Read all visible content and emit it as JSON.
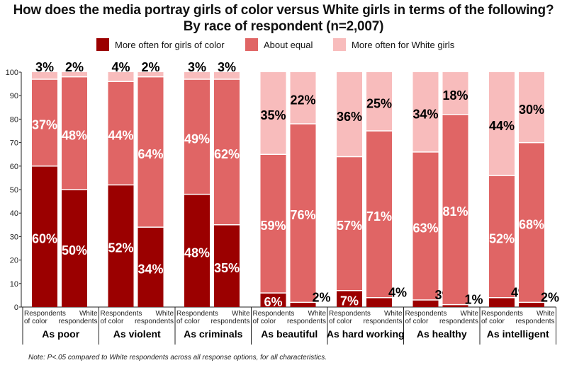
{
  "title_line1": "How does the media portray girls of color versus White girls in terms of the following?",
  "title_line2": "By race of respondent (n=2,007)",
  "legend": [
    {
      "label": "More often for girls of color",
      "color": "#9b0000"
    },
    {
      "label": "About equal",
      "color": "#e06565"
    },
    {
      "label": "More often for White girls",
      "color": "#f8bcbc"
    }
  ],
  "note": "Note: P<.05 compared to White respondents across all response options, for all characteristics.",
  "chart_data": {
    "type": "bar",
    "stacked": true,
    "ylim": [
      0,
      100
    ],
    "yticks": [
      0,
      10,
      20,
      30,
      40,
      50,
      60,
      70,
      80,
      90,
      100
    ],
    "bar_labels": [
      [
        "Respondents",
        "of color"
      ],
      [
        "White",
        "respondents"
      ]
    ],
    "series_names": [
      "More often for girls of color",
      "About equal",
      "More often for White girls"
    ],
    "colors": [
      "#9b0000",
      "#e06565",
      "#f8bcbc"
    ],
    "groups": [
      {
        "label": "As poor",
        "bars": [
          [
            60,
            37,
            3
          ],
          [
            50,
            48,
            2
          ]
        ]
      },
      {
        "label": "As violent",
        "bars": [
          [
            52,
            44,
            4
          ],
          [
            34,
            64,
            2
          ]
        ]
      },
      {
        "label": "As criminals",
        "bars": [
          [
            48,
            49,
            3
          ],
          [
            35,
            62,
            3
          ]
        ]
      },
      {
        "label": "As beautiful",
        "bars": [
          [
            6,
            59,
            35
          ],
          [
            2,
            76,
            22
          ]
        ]
      },
      {
        "label": "As hard working",
        "bars": [
          [
            7,
            57,
            36
          ],
          [
            4,
            71,
            25
          ]
        ]
      },
      {
        "label": "As healthy",
        "bars": [
          [
            3,
            63,
            34
          ],
          [
            1,
            81,
            18
          ]
        ]
      },
      {
        "label": "As intelligent",
        "bars": [
          [
            4,
            52,
            44
          ],
          [
            2,
            68,
            30
          ]
        ]
      }
    ]
  }
}
